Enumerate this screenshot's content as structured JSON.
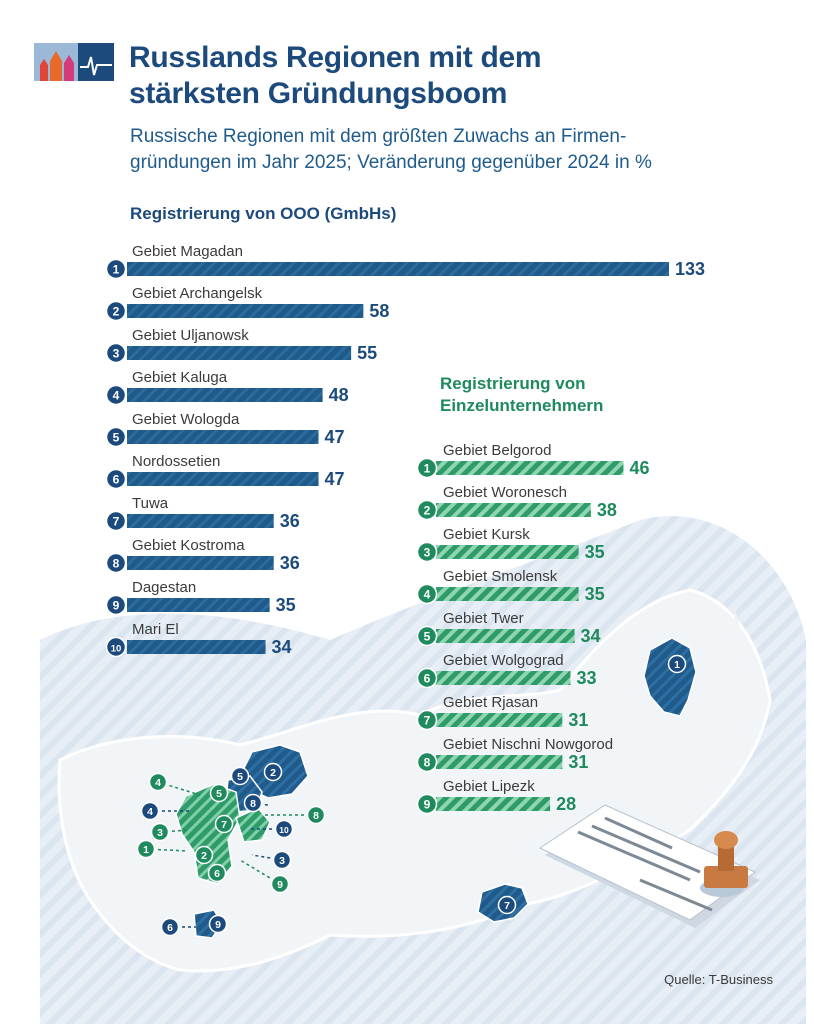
{
  "header": {
    "title": "Russlands Regionen mit dem stärksten Gründungsboom",
    "subtitle": "Russische Regionen mit dem größten Zuwachs an Firmen-gründungen im Jahr 2025; Veränderung gegenüber 2024 in %"
  },
  "footer": {
    "source": "Quelle: T-Business"
  },
  "colors": {
    "ooo_bar": "#1f5a8a",
    "ooo_dark": "#1c4a7c",
    "ie_bar": "#2f9a6a",
    "ie_dark": "#1f8a5e",
    "map_land": "#eef2f6",
    "map_sea": "#e3ebf3"
  },
  "chart_data": [
    {
      "type": "bar",
      "title": "Registrierung von OOO (GmbHs)",
      "unit": "%",
      "ranks": [
        "1",
        "2",
        "3",
        "4",
        "5",
        "6",
        "7",
        "8",
        "9",
        "10"
      ],
      "categories": [
        "Gebiet Magadan",
        "Gebiet Archangelsk",
        "Gebiet Uljanowsk",
        "Gebiet Kaluga",
        "Gebiet Wologda",
        "Nordossetien",
        "Tuwa",
        "Gebiet Kostroma",
        "Dagestan",
        "Mari El"
      ],
      "values": [
        133,
        58,
        55,
        48,
        47,
        47,
        36,
        36,
        35,
        34
      ],
      "xlim": [
        0,
        133
      ]
    },
    {
      "type": "bar",
      "title": "Registrierung von Einzelunternehmern",
      "unit": "%",
      "ranks": [
        "1",
        "2",
        "3",
        "4",
        "5",
        "6",
        "7",
        "8",
        "9"
      ],
      "categories": [
        "Gebiet Belgorod",
        "Gebiet Woronesch",
        "Gebiet Kursk",
        "Gebiet Smolensk",
        "Gebiet Twer",
        "Gebiet Wolgograd",
        "Gebiet Rjasan",
        "Gebiet Nischni Nowgorod",
        "Gebiet Lipezk"
      ],
      "values": [
        46,
        38,
        35,
        35,
        34,
        33,
        31,
        31,
        28
      ],
      "xlim": [
        0,
        133
      ]
    }
  ],
  "map": {
    "ooo_markers": [
      "1",
      "2",
      "3",
      "4",
      "5",
      "6",
      "7",
      "8",
      "9",
      "10"
    ],
    "ie_markers": [
      "1",
      "2",
      "3",
      "4",
      "5",
      "6",
      "7",
      "8",
      "9"
    ]
  }
}
